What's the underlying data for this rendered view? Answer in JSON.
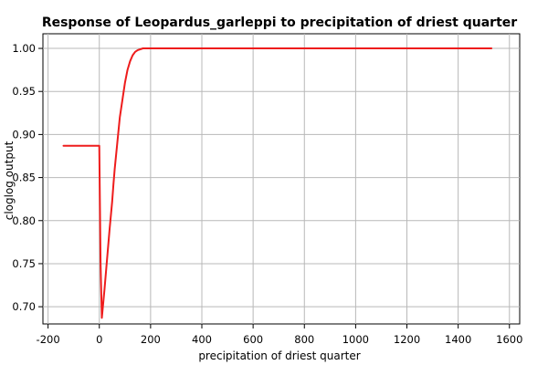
{
  "chart_data": {
    "type": "line",
    "title": "Response of Leopardus_garleppi to precipitation of driest quarter",
    "xlabel": "precipitation of driest quarter",
    "ylabel": "cloglog output",
    "xlim": [
      -220,
      1640
    ],
    "ylim": [
      0.68,
      1.017
    ],
    "xticks": [
      -200,
      0,
      200,
      400,
      600,
      800,
      1000,
      1200,
      1400,
      1600
    ],
    "xtick_labels": [
      "-200",
      "0",
      "200",
      "400",
      "600",
      "800",
      "1000",
      "1200",
      "1400",
      "1600"
    ],
    "yticks": [
      0.7,
      0.75,
      0.8,
      0.85,
      0.9,
      0.95,
      1.0
    ],
    "ytick_labels": [
      "0.70",
      "0.75",
      "0.80",
      "0.85",
      "0.90",
      "0.95",
      "1.00"
    ],
    "grid": true,
    "series": [
      {
        "color": "#ee1c1c",
        "x": [
          -140,
          0,
          5,
          10,
          20,
          30,
          40,
          50,
          55,
          60,
          70,
          80,
          90,
          100,
          110,
          120,
          130,
          140,
          150,
          160,
          170,
          180,
          190,
          200,
          250,
          400,
          600,
          800,
          1000,
          1200,
          1400,
          1530
        ],
        "y": [
          0.887,
          0.887,
          0.75,
          0.687,
          0.72,
          0.755,
          0.79,
          0.822,
          0.842,
          0.86,
          0.89,
          0.92,
          0.94,
          0.96,
          0.975,
          0.985,
          0.992,
          0.996,
          0.998,
          0.999,
          1.0,
          1.0,
          1.0,
          1.0,
          1.0,
          1.0,
          1.0,
          1.0,
          1.0,
          1.0,
          1.0,
          1.0
        ]
      }
    ]
  }
}
